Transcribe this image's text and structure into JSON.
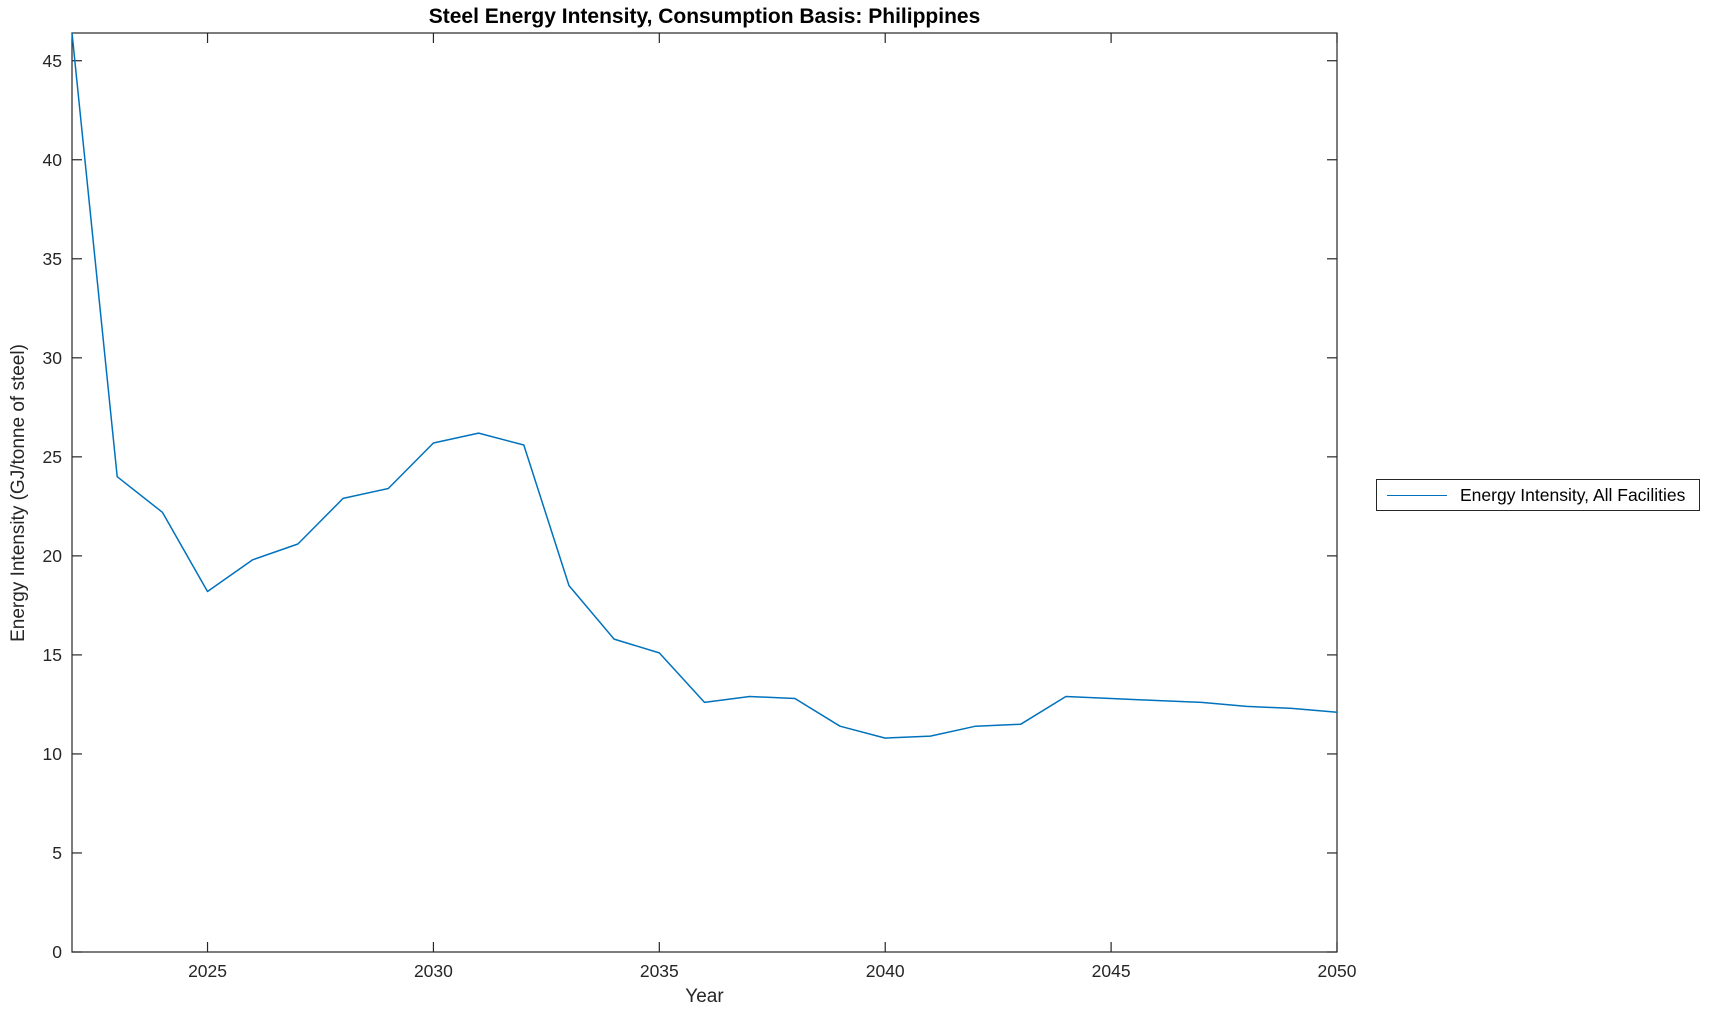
{
  "chart_data": {
    "type": "line",
    "title": "Steel Energy Intensity, Consumption Basis: Philippines",
    "xlabel": "Year",
    "ylabel": "Energy Intensity (GJ/tonne of steel)",
    "xlim": [
      2022,
      2050
    ],
    "ylim": [
      0,
      46.4
    ],
    "xticks": [
      2025,
      2030,
      2035,
      2040,
      2045,
      2050
    ],
    "yticks": [
      0,
      5,
      10,
      15,
      20,
      25,
      30,
      35,
      40,
      45
    ],
    "grid": false,
    "line_color": "#0072BD",
    "axis_color": "#262626",
    "legend": {
      "position": "right-outside",
      "entries": [
        "Energy Intensity, All Facilities"
      ]
    },
    "series": [
      {
        "name": "Energy Intensity, All Facilities",
        "x": [
          2022,
          2023,
          2024,
          2025,
          2026,
          2027,
          2028,
          2029,
          2030,
          2031,
          2032,
          2033,
          2034,
          2035,
          2036,
          2037,
          2038,
          2039,
          2040,
          2041,
          2042,
          2043,
          2044,
          2045,
          2046,
          2047,
          2048,
          2049,
          2050
        ],
        "values": [
          46.4,
          24.0,
          22.2,
          18.2,
          19.8,
          20.6,
          22.9,
          23.4,
          25.7,
          26.2,
          25.6,
          18.5,
          15.8,
          15.1,
          12.6,
          12.9,
          12.8,
          11.4,
          10.8,
          10.9,
          11.4,
          11.5,
          12.9,
          12.8,
          12.7,
          12.6,
          12.4,
          12.3,
          12.1
        ]
      }
    ]
  }
}
